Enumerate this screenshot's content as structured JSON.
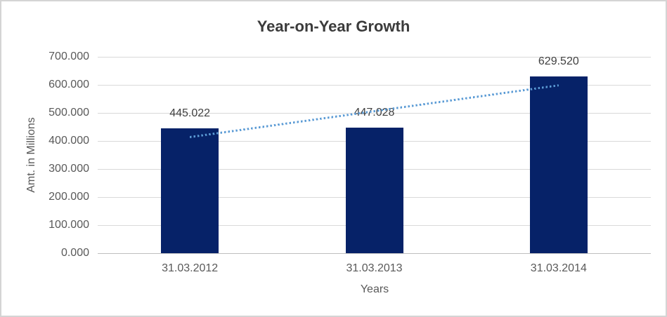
{
  "chart_data": {
    "type": "bar",
    "title": "Year-on-Year Growth",
    "xlabel": "Years",
    "ylabel": "Amt. in Millions",
    "categories": [
      "31.03.2012",
      "31.03.2013",
      "31.03.2014"
    ],
    "values": [
      445.022,
      447.028,
      629.52
    ],
    "value_labels": [
      "445.022",
      "447.028",
      "629.520"
    ],
    "ylim": [
      0,
      700
    ],
    "yticks": [
      {
        "label": "0.000",
        "value": 0
      },
      {
        "label": "100.000",
        "value": 100
      },
      {
        "label": "200.000",
        "value": 200
      },
      {
        "label": "300.000",
        "value": 300
      },
      {
        "label": "400.000",
        "value": 400
      },
      {
        "label": "500.000",
        "value": 500
      },
      {
        "label": "600.000",
        "value": 600
      },
      {
        "label": "700.000",
        "value": 700
      }
    ],
    "grid": "horizontal",
    "legend": "none",
    "trendline": {
      "type": "linear",
      "style": "dotted",
      "start_value": 415,
      "end_value": 599.5
    },
    "colors": {
      "bar": "#062268",
      "trendline": "#5b9bd5",
      "gridline": "#d9d9d9",
      "axis_line": "#bfbfbf",
      "title_text": "#3b3b3b",
      "axis_text": "#595959",
      "label_text": "#404040",
      "border": "#d4d4d4",
      "background": "#ffffff"
    }
  }
}
